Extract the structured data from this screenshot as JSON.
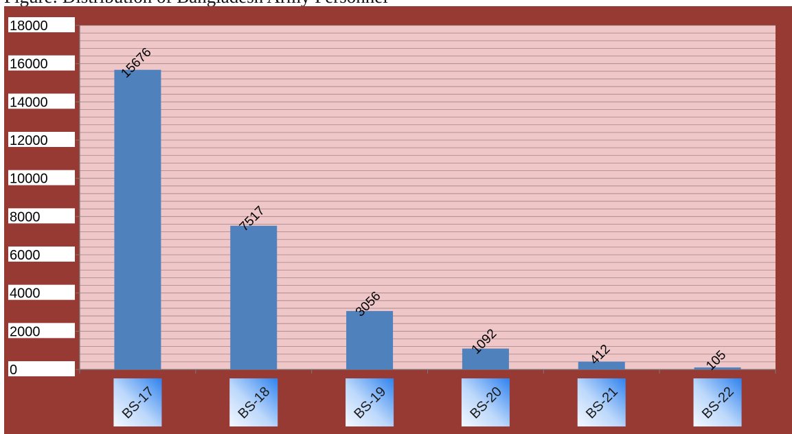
{
  "caption": "Figure: Distribution of Bangladesh Army Personnel",
  "colors": {
    "frame": "#983a34",
    "plot_bg": "#efc7c9",
    "grid": "#8a6b6b",
    "bar": "#4f81bd",
    "tile_light": "#eef5ff",
    "tile_dark": "#2f82ee"
  },
  "chart_data": {
    "type": "bar",
    "categories": [
      "BS-17",
      "BS-18",
      "BS-19",
      "BS-20",
      "BS-21",
      "BS-22"
    ],
    "values": [
      15676,
      7517,
      3056,
      1092,
      412,
      105
    ],
    "data_labels": [
      "15676",
      "7517",
      "3056",
      "1092",
      "412",
      "105"
    ],
    "ylim": [
      0,
      18000
    ],
    "yticks": [
      0,
      2000,
      4000,
      6000,
      8000,
      10000,
      12000,
      14000,
      16000,
      18000
    ],
    "minor_grid_step": 400,
    "grid": true,
    "legend": "none"
  }
}
